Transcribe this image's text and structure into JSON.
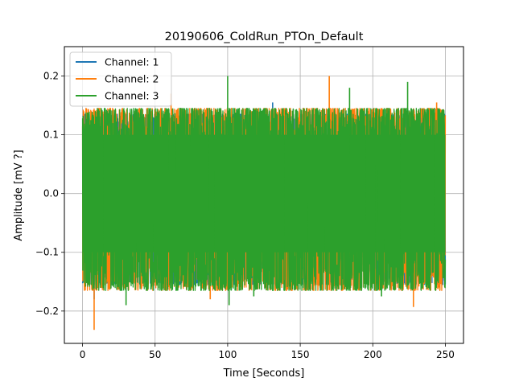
{
  "chart_data": {
    "type": "line",
    "title": "20190606_ColdRun_PTOn_Default",
    "xlabel": "Time [Seconds]",
    "ylabel": "Amplitude [mV ?]",
    "xlim": [
      -12.5,
      262.5
    ],
    "ylim": [
      -0.255,
      0.25
    ],
    "x_ticks": [
      0,
      50,
      100,
      150,
      200,
      250
    ],
    "x_tick_labels": [
      "0",
      "50",
      "100",
      "150",
      "200",
      "250"
    ],
    "y_ticks": [
      -0.2,
      -0.1,
      0.0,
      0.1,
      0.2
    ],
    "y_tick_labels": [
      "−0.2",
      "−0.1",
      "0.0",
      "0.1",
      "0.2"
    ],
    "grid": true,
    "legend_position": "top-left",
    "x_range": [
      0,
      250
    ],
    "series": [
      {
        "name": "Channel: 1",
        "color": "#1f77b4",
        "core_range": [
          -0.1,
          0.1
        ],
        "envelope": {
          "x": [
            0,
            8,
            25,
            50,
            75,
            100,
            125,
            150,
            175,
            200,
            225,
            250
          ],
          "max": [
            0.14,
            0.14,
            0.14,
            0.14,
            0.14,
            0.14,
            0.14,
            0.14,
            0.14,
            0.14,
            0.14,
            0.14
          ],
          "min": [
            -0.16,
            -0.16,
            -0.16,
            -0.16,
            -0.16,
            -0.16,
            -0.16,
            -0.16,
            -0.16,
            -0.16,
            -0.16,
            -0.16
          ]
        },
        "peaks": [
          [
            131,
            0.155
          ],
          [
            243,
            0.135
          ]
        ],
        "troughs": [
          [
            8,
            -0.18
          ],
          [
            187,
            -0.155
          ]
        ]
      },
      {
        "name": "Channel: 2",
        "color": "#ff7f0e",
        "core_range": [
          -0.1,
          0.1
        ],
        "envelope": {
          "x": [
            0,
            8,
            25,
            50,
            75,
            100,
            125,
            150,
            175,
            200,
            225,
            250
          ],
          "max": [
            0.15,
            0.15,
            0.15,
            0.15,
            0.15,
            0.15,
            0.15,
            0.15,
            0.15,
            0.15,
            0.15,
            0.15
          ],
          "min": [
            -0.17,
            -0.17,
            -0.17,
            -0.17,
            -0.17,
            -0.17,
            -0.17,
            -0.17,
            -0.17,
            -0.17,
            -0.17,
            -0.17
          ]
        },
        "peaks": [
          [
            61,
            0.17
          ],
          [
            170,
            0.2
          ],
          [
            228,
            0.145
          ],
          [
            244,
            0.155
          ]
        ],
        "troughs": [
          [
            8,
            -0.232
          ],
          [
            88,
            -0.18
          ],
          [
            228,
            -0.193
          ],
          [
            30,
            -0.16
          ]
        ]
      },
      {
        "name": "Channel: 3",
        "color": "#2ca02c",
        "core_range": [
          -0.1,
          0.1
        ],
        "envelope": {
          "x": [
            0,
            8,
            25,
            50,
            75,
            100,
            125,
            150,
            175,
            200,
            225,
            250
          ],
          "max": [
            0.14,
            0.15,
            0.15,
            0.15,
            0.15,
            0.15,
            0.15,
            0.15,
            0.15,
            0.15,
            0.15,
            0.15
          ],
          "min": [
            -0.16,
            -0.17,
            -0.17,
            -0.17,
            -0.17,
            -0.17,
            -0.17,
            -0.17,
            -0.17,
            -0.17,
            -0.17,
            -0.17
          ]
        },
        "peaks": [
          [
            100,
            0.2
          ],
          [
            184,
            0.18
          ],
          [
            224,
            0.19
          ]
        ],
        "troughs": [
          [
            30,
            -0.19
          ],
          [
            101,
            -0.19
          ],
          [
            118,
            -0.175
          ],
          [
            206,
            -0.175
          ]
        ]
      }
    ]
  }
}
